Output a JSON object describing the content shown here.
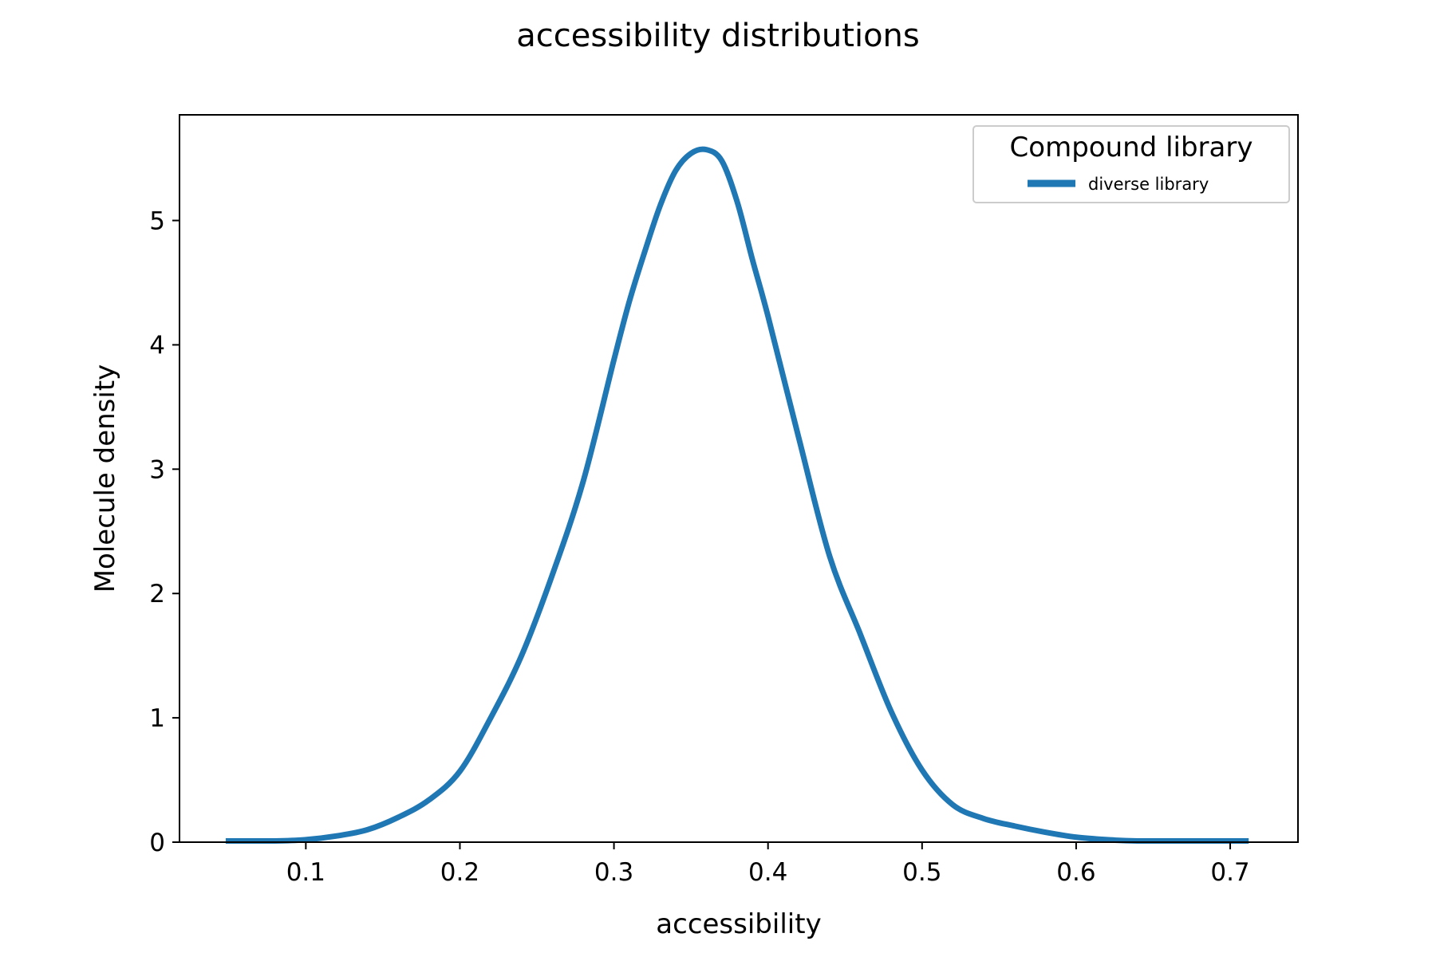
{
  "chart_data": {
    "type": "line",
    "title": "accessibility distributions",
    "xlabel": "accessibility",
    "ylabel": "Molecule density",
    "xlim": [
      0.018,
      0.744
    ],
    "ylim": [
      0,
      5.85
    ],
    "xticks": [
      "0.1",
      "0.2",
      "0.3",
      "0.4",
      "0.5",
      "0.6",
      "0.7"
    ],
    "yticks": [
      "0",
      "1",
      "2",
      "3",
      "4",
      "5"
    ],
    "grid": false,
    "legend": {
      "title": "Compound library",
      "placement": "top-right"
    },
    "series": [
      {
        "name": "diverse library",
        "color": "#1f77b4",
        "x": [
          0.048,
          0.08,
          0.1,
          0.12,
          0.14,
          0.16,
          0.18,
          0.2,
          0.22,
          0.24,
          0.26,
          0.28,
          0.3,
          0.31,
          0.32,
          0.33,
          0.34,
          0.35,
          0.36,
          0.37,
          0.38,
          0.39,
          0.4,
          0.42,
          0.44,
          0.46,
          0.48,
          0.5,
          0.52,
          0.54,
          0.56,
          0.58,
          0.6,
          0.62,
          0.64,
          0.68,
          0.712
        ],
        "y": [
          0.01,
          0.01,
          0.02,
          0.05,
          0.1,
          0.2,
          0.34,
          0.57,
          1.0,
          1.5,
          2.15,
          2.9,
          3.88,
          4.35,
          4.75,
          5.12,
          5.4,
          5.54,
          5.57,
          5.48,
          5.15,
          4.68,
          4.23,
          3.25,
          2.3,
          1.67,
          1.05,
          0.58,
          0.3,
          0.19,
          0.13,
          0.08,
          0.04,
          0.02,
          0.01,
          0.01,
          0.01
        ]
      }
    ]
  }
}
